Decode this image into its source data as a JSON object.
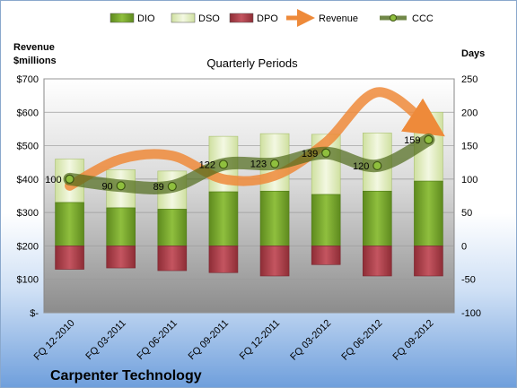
{
  "chart_data": {
    "type": "bar",
    "title": "Quarterly Periods",
    "company": "Carpenter Technology",
    "categories": [
      "FQ 12-2010",
      "FQ 03-2011",
      "FQ 06-2011",
      "FQ 09-2011",
      "FQ 12-2011",
      "FQ 03-2012",
      "FQ 06-2012",
      "FQ 09-2012"
    ],
    "y_left": {
      "label_line1": "Revenue",
      "label_line2": "$millions",
      "range": [
        0,
        700
      ],
      "ticks": [
        "$-",
        "$100",
        "$200",
        "$300",
        "$400",
        "$500",
        "$600",
        "$700"
      ]
    },
    "y_right": {
      "label": "Days",
      "range": [
        -100,
        250
      ],
      "ticks": [
        "-100",
        "-50",
        "0",
        "50",
        "100",
        "150",
        "200",
        "250"
      ]
    },
    "series": [
      {
        "name": "DIO",
        "color": "#7aa832",
        "values": [
          65,
          57,
          55,
          81,
          82,
          77,
          82,
          97
        ]
      },
      {
        "name": "DSO",
        "color": "#e6f0c8",
        "values": [
          65,
          57,
          57,
          83,
          86,
          90,
          87,
          103
        ]
      },
      {
        "name": "DPO",
        "color": "#b5414a",
        "values": [
          -35,
          -33,
          -37,
          -40,
          -45,
          -28,
          -45,
          -45
        ]
      },
      {
        "name": "Revenue",
        "color": "#ee8a3a",
        "values": [
          380,
          460,
          470,
          400,
          410,
          510,
          660,
          560
        ]
      },
      {
        "name": "CCC",
        "color": "#4e6a1a",
        "values": [
          100,
          90,
          89,
          122,
          123,
          139,
          120,
          159
        ]
      }
    ],
    "ccc_labels": [
      "100",
      "90",
      "89",
      "122",
      "123",
      "139",
      "120",
      "159"
    ],
    "grid": true,
    "legend": "top"
  }
}
